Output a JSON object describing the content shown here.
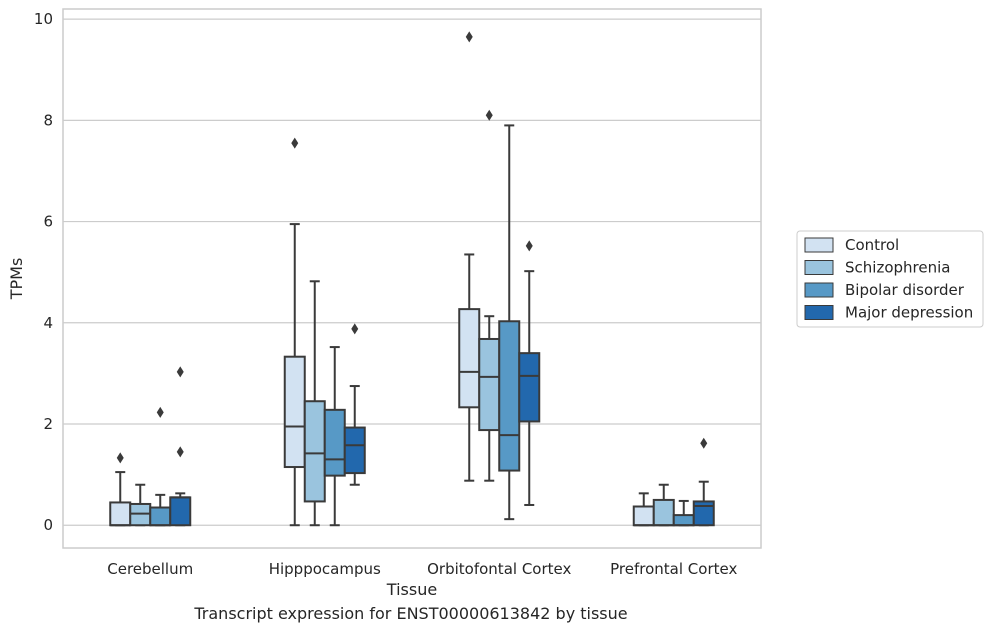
{
  "caption": "Transcript expression for ENST00000613842 by tissue",
  "chart_data": {
    "type": "boxplot",
    "xlabel": "Tissue",
    "ylabel": "TPMs",
    "ylim": [
      -0.45,
      10.2
    ],
    "yticks": [
      0,
      2,
      4,
      6,
      8,
      10
    ],
    "grid": true,
    "legend_position": "right",
    "categories": [
      "Cerebellum",
      "Hipppocampus",
      "Orbitofontal Cortex",
      "Prefrontal Cortex"
    ],
    "series": [
      {
        "name": "Control",
        "color": "#d2e2f2",
        "boxes": [
          {
            "whislo": 0,
            "q1": 0,
            "med": 0,
            "q3": 0.45,
            "whishi": 1.05,
            "fliers": [
              1.33
            ]
          },
          {
            "whislo": 0,
            "q1": 1.15,
            "med": 1.95,
            "q3": 3.33,
            "whishi": 5.95,
            "fliers": [
              7.55
            ]
          },
          {
            "whislo": 0.88,
            "q1": 2.33,
            "med": 3.03,
            "q3": 4.27,
            "whishi": 5.35,
            "fliers": [
              9.65
            ]
          },
          {
            "whislo": 0,
            "q1": 0,
            "med": 0,
            "q3": 0.37,
            "whishi": 0.63,
            "fliers": []
          }
        ]
      },
      {
        "name": "Schizophrenia",
        "color": "#9ac4de",
        "boxes": [
          {
            "whislo": 0,
            "q1": 0,
            "med": 0.23,
            "q3": 0.42,
            "whishi": 0.8,
            "fliers": []
          },
          {
            "whislo": 0,
            "q1": 0.47,
            "med": 1.42,
            "q3": 2.45,
            "whishi": 4.82,
            "fliers": []
          },
          {
            "whislo": 0.88,
            "q1": 1.88,
            "med": 2.93,
            "q3": 3.68,
            "whishi": 4.13,
            "fliers": [
              8.1
            ]
          },
          {
            "whislo": 0,
            "q1": 0,
            "med": 0,
            "q3": 0.5,
            "whishi": 0.8,
            "fliers": []
          }
        ]
      },
      {
        "name": "Bipolar disorder",
        "color": "#5799c6",
        "boxes": [
          {
            "whislo": 0,
            "q1": 0,
            "med": 0,
            "q3": 0.35,
            "whishi": 0.6,
            "fliers": [
              2.23
            ]
          },
          {
            "whislo": 0,
            "q1": 0.98,
            "med": 1.3,
            "q3": 2.28,
            "whishi": 3.52,
            "fliers": []
          },
          {
            "whislo": 0.12,
            "q1": 1.08,
            "med": 1.78,
            "q3": 4.03,
            "whishi": 7.9,
            "fliers": []
          },
          {
            "whislo": 0,
            "q1": 0,
            "med": 0,
            "q3": 0.2,
            "whishi": 0.48,
            "fliers": []
          }
        ]
      },
      {
        "name": "Major depression",
        "color": "#2268ad",
        "boxes": [
          {
            "whislo": 0,
            "q1": 0,
            "med": 0.55,
            "q3": 0.55,
            "whishi": 0.63,
            "fliers": [
              1.45,
              3.03
            ]
          },
          {
            "whislo": 0.8,
            "q1": 1.03,
            "med": 1.58,
            "q3": 1.93,
            "whishi": 2.75,
            "fliers": [
              3.88
            ]
          },
          {
            "whislo": 0.4,
            "q1": 2.05,
            "med": 2.95,
            "q3": 3.4,
            "whishi": 5.02,
            "fliers": [
              5.52
            ]
          },
          {
            "whislo": 0,
            "q1": 0,
            "med": 0.38,
            "q3": 0.47,
            "whishi": 0.86,
            "fliers": [
              1.62
            ]
          }
        ]
      }
    ]
  }
}
